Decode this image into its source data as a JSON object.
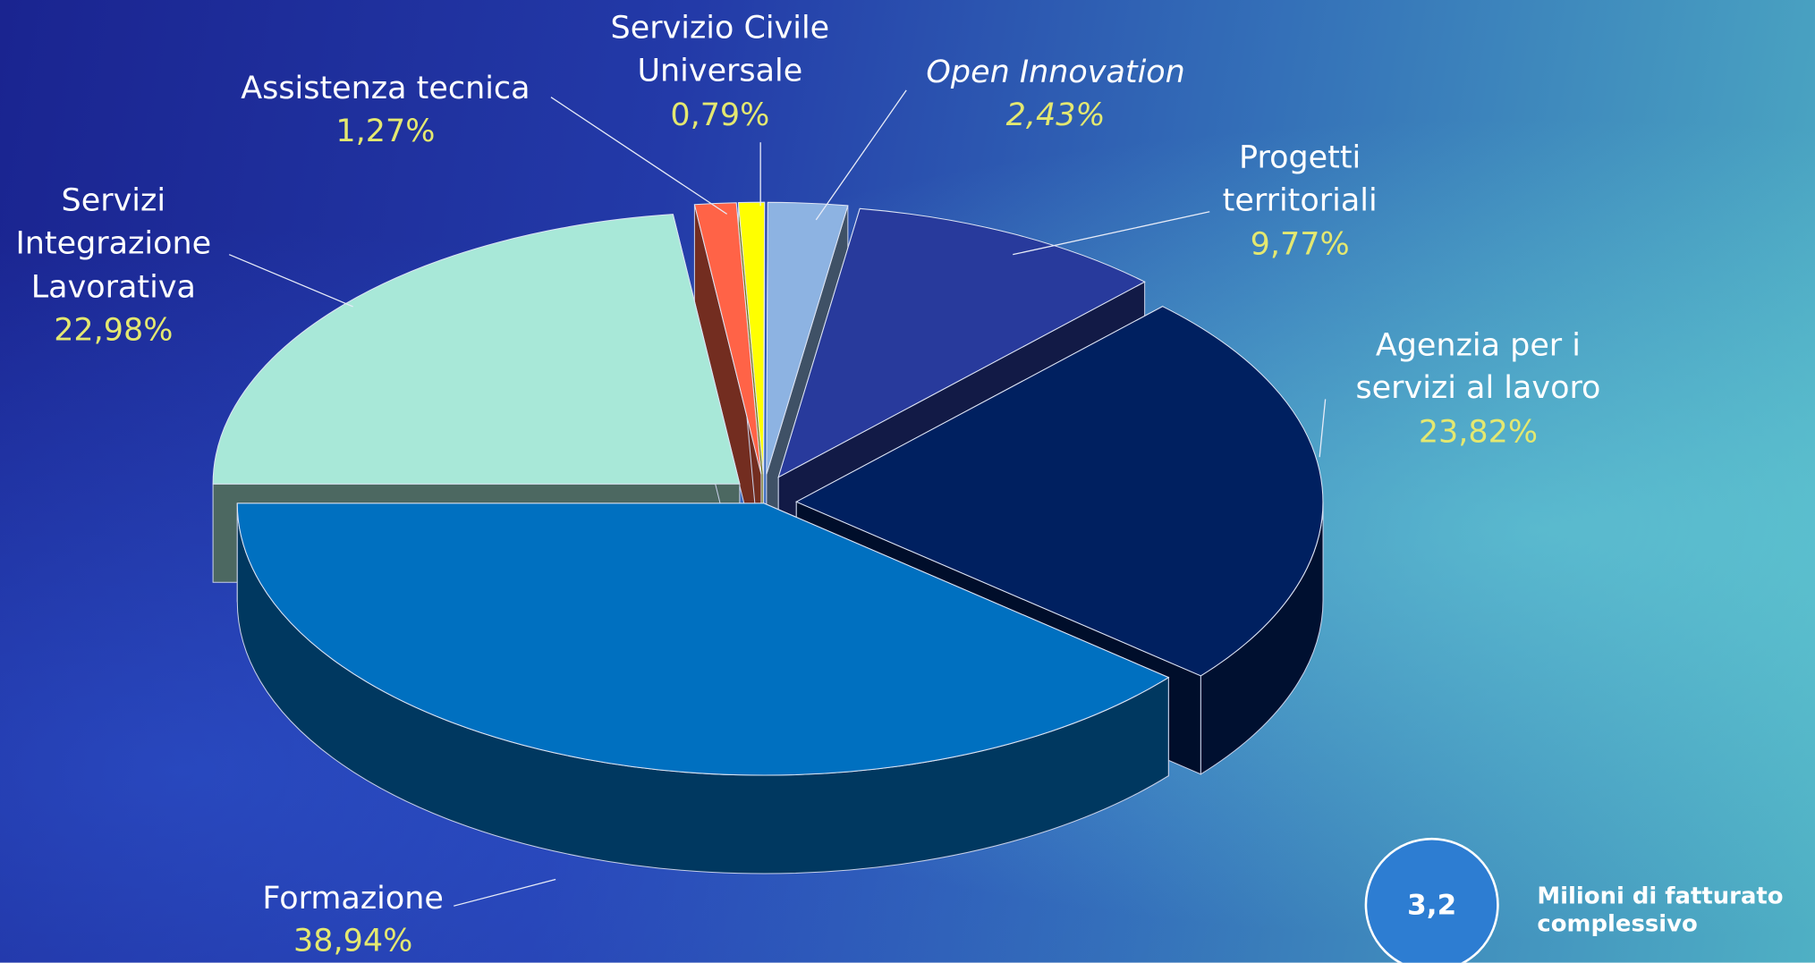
{
  "chart_data": {
    "type": "pie",
    "categories": [
      "Formazione",
      "Agenzia per i servizi al lavoro",
      "Progetti territoriali",
      "Open Innovation",
      "Servizio Civile Universale",
      "Assistenza tecnica",
      "Servizi Integrazione Lavorativa"
    ],
    "values": [
      38.94,
      23.82,
      9.77,
      2.43,
      0.79,
      1.27,
      22.98
    ],
    "value_labels": [
      "38,94%",
      "23,82%",
      "9,77%",
      "2,43%",
      "0,79%",
      "1,27%",
      "22,98%"
    ],
    "colors": [
      "#0070c0",
      "#002060",
      "#283a9c",
      "#8db3e2",
      "#ffff00",
      "#ff6347",
      "#a8e8d8"
    ],
    "total_label": "3,2",
    "total_caption": "Milioni di fatturato complessivo"
  }
}
